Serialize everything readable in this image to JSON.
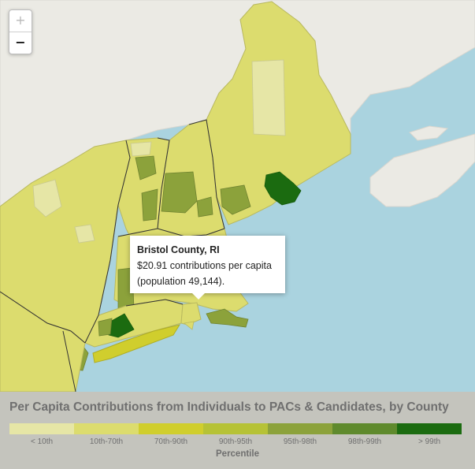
{
  "map": {
    "zoom_in_label": "+",
    "zoom_out_label": "−"
  },
  "tooltip": {
    "title": "Bristol County, RI",
    "line1": "$20.91 contributions per capita",
    "line2": "(population 49,144)."
  },
  "legend": {
    "title": "Per Capita Contributions from Individuals to PACs & Candidates, by County",
    "axis_label": "Percentile",
    "classes": [
      {
        "label": "< 10th",
        "color": "#e6e6a6"
      },
      {
        "label": "10th-70th",
        "color": "#dcdc6e"
      },
      {
        "label": "70th-90th",
        "color": "#d0ce2d"
      },
      {
        "label": "90th-95th",
        "color": "#b6c236"
      },
      {
        "label": "95th-98th",
        "color": "#8ca23b"
      },
      {
        "label": "98th-99th",
        "color": "#5f8a2d"
      },
      {
        "label": "> 99th",
        "color": "#1b6b10"
      }
    ]
  },
  "colors": {
    "water": "#aad3df",
    "land": "#ebeae4",
    "legend_bg": "#c4c4bd"
  }
}
